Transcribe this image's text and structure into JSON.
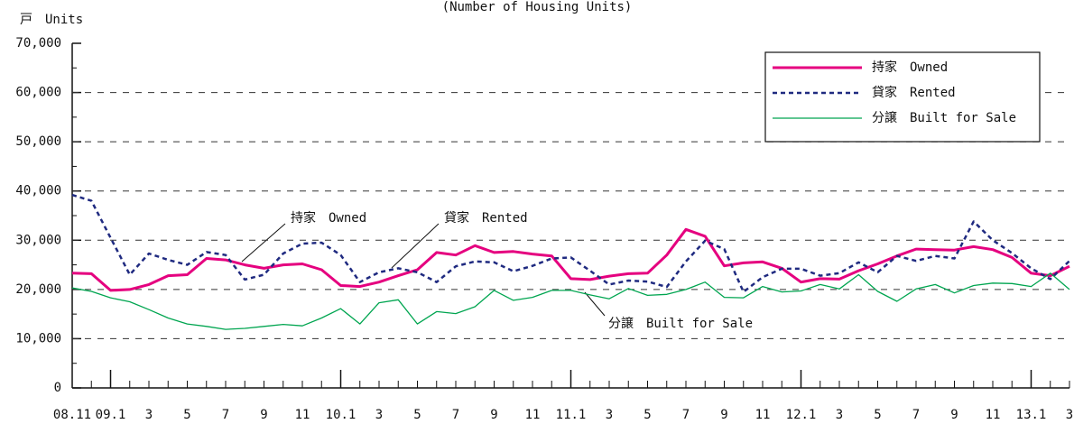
{
  "chart_data": {
    "type": "line",
    "title": "(Number of Housing Units)",
    "y_label": "戸　Units",
    "categories": [
      "08.11",
      null,
      "09.1",
      null,
      "3",
      null,
      "5",
      null,
      "7",
      null,
      "9",
      null,
      "11",
      null,
      "10.1",
      null,
      "3",
      null,
      "5",
      null,
      "7",
      null,
      "9",
      null,
      "11",
      null,
      "11.1",
      null,
      "3",
      null,
      "5",
      null,
      "7",
      null,
      "9",
      null,
      "11",
      null,
      "12.1",
      null,
      "3",
      null,
      "5",
      null,
      "7",
      null,
      "9",
      null,
      "11",
      null,
      "13.1",
      null,
      "3"
    ],
    "series": [
      {
        "name": "持家　Owned",
        "color": "#e5007f",
        "style": "solid",
        "values": [
          23300,
          23200,
          19800,
          20000,
          21000,
          22800,
          23000,
          26300,
          26000,
          25000,
          24300,
          25000,
          25200,
          24000,
          20800,
          20600,
          21500,
          22800,
          24000,
          27500,
          27000,
          28900,
          27500,
          27700,
          27200,
          26800,
          22200,
          22000,
          22700,
          23200,
          23300,
          27000,
          32200,
          30800,
          24800,
          25400,
          25600,
          24300,
          21500,
          22200,
          22100,
          23800,
          25200,
          26800,
          28200,
          28100,
          28000,
          28700,
          28100,
          26500,
          23300,
          22800,
          24700
        ]
      },
      {
        "name": "貸家　Rented",
        "color": "#1f2a80",
        "style": "dashed",
        "values": [
          39200,
          38000,
          30500,
          23000,
          27300,
          26000,
          25000,
          27600,
          27000,
          22000,
          23000,
          27300,
          29300,
          29500,
          27000,
          21500,
          23500,
          24300,
          23500,
          21500,
          24700,
          25700,
          25500,
          23700,
          24800,
          26300,
          26500,
          23800,
          21000,
          21800,
          21600,
          20500,
          25700,
          29900,
          28200,
          19500,
          22500,
          24200,
          24200,
          22800,
          23300,
          25500,
          23500,
          26800,
          25800,
          26800,
          26300,
          33800,
          30000,
          27400,
          24300,
          22100,
          25800
        ]
      },
      {
        "name": "分譲　Built for Sale",
        "color": "#00a550",
        "style": "thin",
        "values": [
          20300,
          19600,
          18300,
          17500,
          15900,
          14200,
          13000,
          12500,
          11900,
          12100,
          12500,
          12900,
          12600,
          14200,
          16100,
          13000,
          17300,
          17900,
          13000,
          15500,
          15100,
          16500,
          19800,
          17800,
          18400,
          19800,
          19800,
          18900,
          18100,
          20200,
          18800,
          19000,
          20000,
          21500,
          18400,
          18300,
          20600,
          19500,
          19700,
          21000,
          20100,
          23000,
          19600,
          17600,
          20100,
          21000,
          19300,
          20800,
          21300,
          21200,
          20600,
          23300,
          20000
        ]
      }
    ],
    "annotations": [
      "持家　Owned",
      "貸家　Rented",
      "分譲　Built for Sale"
    ],
    "ylim": [
      0,
      70000
    ],
    "yticks": [
      0,
      {
        "value": 10000,
        "label": "10,000"
      },
      {
        "value": 20000,
        "label": "20,000"
      },
      {
        "value": 30000,
        "label": "30,000"
      },
      {
        "value": 40000,
        "label": "40,000"
      },
      {
        "value": 50000,
        "label": "50,000"
      },
      {
        "value": 60000,
        "label": "60,000"
      },
      {
        "value": 70000,
        "label": "70,000"
      }
    ],
    "grid": true,
    "legend": "upper right"
  }
}
